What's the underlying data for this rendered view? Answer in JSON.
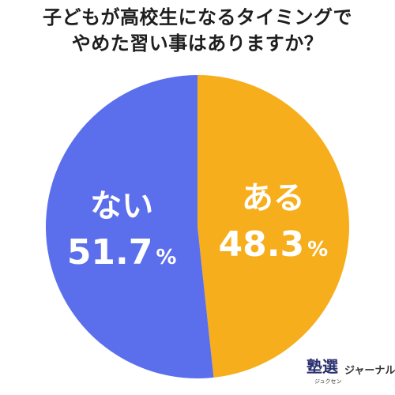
{
  "title_lines": [
    "子どもが高校生になるタイミングで",
    "やめた習い事はありますか？"
  ],
  "chart_data": {
    "type": "pie",
    "title": "子どもが高校生になるタイミングでやめた習い事はありますか？",
    "slices": [
      {
        "label": "ある",
        "value": 48.3,
        "value_label": "48.3",
        "unit": "%",
        "color": "#f7ae1c"
      },
      {
        "label": "ない",
        "value": 51.7,
        "value_label": "51.7",
        "unit": "%",
        "color": "#5b6fed"
      }
    ],
    "start": "top",
    "direction": "clockwise",
    "label_color": "#ffffff"
  },
  "logo": {
    "mark": "塾選",
    "ruby": "ジュクセン",
    "text": "ジャーナル"
  }
}
